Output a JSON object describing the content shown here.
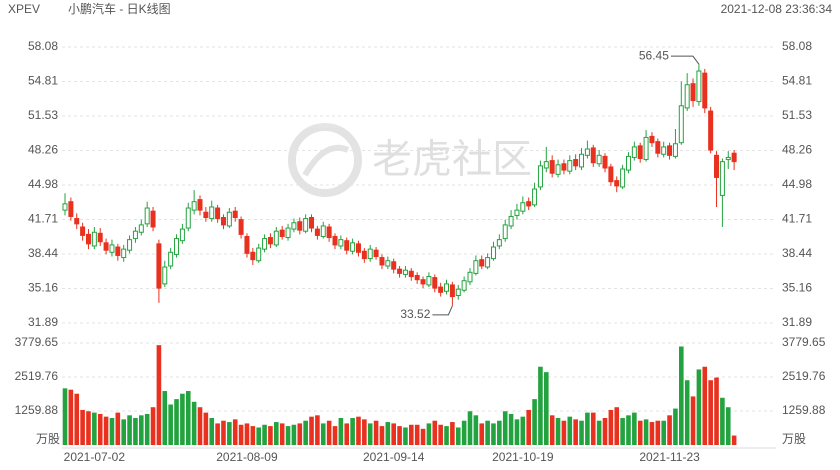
{
  "header": {
    "symbol": "XPEV",
    "name": "小鹏汽车 - 日K线图",
    "timestamp": "2021-12-08 23:36:34"
  },
  "watermark": "老虎社区",
  "chart_data": {
    "type": "candlestick",
    "up_color": "#23a33f",
    "down_color": "#e8311f",
    "categories": [
      null,
      null,
      null,
      null,
      null,
      "2021-07-02",
      null,
      null,
      null,
      null,
      null,
      null,
      null,
      null,
      null,
      null,
      null,
      null,
      null,
      null,
      null,
      null,
      null,
      null,
      null,
      null,
      null,
      null,
      null,
      null,
      null,
      "2021-08-09",
      null,
      null,
      null,
      null,
      null,
      null,
      null,
      null,
      null,
      null,
      null,
      null,
      null,
      null,
      null,
      null,
      null,
      null,
      null,
      null,
      null,
      null,
      null,
      null,
      "2021-09-14",
      null,
      null,
      null,
      null,
      null,
      null,
      null,
      null,
      null,
      null,
      null,
      null,
      null,
      null,
      null,
      null,
      null,
      null,
      null,
      null,
      null,
      "2021-10-19",
      null,
      null,
      null,
      null,
      null,
      null,
      null,
      null,
      null,
      null,
      null,
      null,
      null,
      null,
      null,
      null,
      null,
      null,
      null,
      null,
      null,
      null,
      null,
      null,
      "2021-11-23",
      null,
      null,
      null,
      null,
      null,
      null,
      null,
      null,
      null,
      null,
      null
    ],
    "open": [
      42.6,
      43.4,
      41.8,
      41.0,
      40.3,
      39.2,
      40.4,
      39.5,
      38.6,
      39.1,
      38.1,
      38.8,
      39.9,
      40.5,
      41.3,
      42.5,
      39.4,
      35.6,
      37.3,
      38.4,
      39.7,
      40.9,
      42.6,
      43.6,
      42.4,
      41.8,
      42.8,
      41.9,
      41.1,
      42.5,
      41.7,
      40.1,
      38.6,
      37.8,
      38.9,
      40.0,
      39.3,
      40.7,
      40.0,
      40.8,
      41.5,
      40.6,
      41.9,
      40.8,
      40.1,
      41.0,
      40.1,
      39.2,
      39.7,
      38.7,
      39.4,
      38.7,
      38.0,
      38.8,
      38.1,
      37.3,
      37.7,
      37.0,
      36.5,
      36.8,
      36.4,
      36.0,
      35.5,
      36.2,
      35.3,
      34.9,
      35.5,
      34.5,
      35.0,
      35.8,
      36.6,
      37.9,
      37.2,
      38.0,
      39.2,
      39.9,
      41.1,
      42.1,
      42.5,
      43.4,
      43.1,
      44.8,
      46.6,
      47.3,
      46.0,
      47.0,
      46.3,
      47.4,
      46.7,
      47.8,
      48.5,
      47.0,
      47.7,
      46.7,
      45.4,
      44.8,
      46.4,
      47.6,
      48.7,
      47.4,
      49.6,
      49.1,
      47.9,
      48.7,
      47.7,
      49.0,
      52.3,
      54.6,
      52.9,
      55.6,
      52.0,
      47.8,
      44.0,
      47.4,
      48.0
    ],
    "high": [
      44.2,
      43.8,
      42.3,
      41.4,
      40.8,
      41.0,
      40.9,
      39.9,
      39.8,
      39.4,
      39.3,
      40.2,
      41.0,
      41.7,
      43.4,
      42.9,
      39.8,
      37.8,
      39.0,
      40.3,
      41.3,
      43.3,
      44.5,
      44.0,
      42.9,
      43.5,
      43.1,
      42.2,
      42.8,
      42.9,
      42.0,
      40.4,
      39.0,
      39.4,
      40.3,
      40.4,
      41.0,
      41.1,
      41.3,
      41.8,
      41.9,
      42.2,
      42.2,
      41.1,
      41.5,
      41.3,
      40.4,
      40.2,
      40.0,
      39.9,
      39.7,
      39.0,
      39.3,
      39.1,
      38.4,
      38.2,
      38.0,
      37.3,
      37.3,
      37.1,
      36.7,
      36.3,
      36.7,
      36.5,
      35.7,
      36.0,
      35.8,
      35.5,
      36.3,
      37.1,
      38.3,
      38.3,
      38.5,
      39.6,
      40.3,
      41.7,
      42.6,
      43.2,
      43.9,
      43.8,
      45.2,
      47.3,
      48.6,
      47.8,
      47.4,
      47.4,
      47.8,
      47.9,
      48.5,
      49.2,
      48.8,
      48.3,
      48.0,
      47.0,
      45.8,
      46.9,
      48.1,
      49.1,
      49.0,
      50.2,
      50.0,
      49.4,
      49.1,
      49.0,
      50.3,
      54.8,
      55.6,
      55.1,
      56.45,
      56.0,
      52.4,
      48.2,
      47.5,
      48.2,
      48.3
    ],
    "low": [
      42.1,
      41.6,
      40.8,
      39.7,
      38.9,
      38.9,
      39.2,
      38.4,
      38.2,
      37.8,
      37.7,
      38.5,
      39.5,
      40.2,
      41.0,
      40.6,
      33.8,
      35.3,
      37.0,
      38.1,
      39.4,
      40.6,
      42.2,
      42.1,
      41.5,
      41.5,
      41.4,
      40.8,
      40.9,
      41.5,
      39.9,
      38.1,
      37.4,
      37.6,
      38.6,
      39.0,
      39.1,
      39.8,
      39.7,
      40.5,
      40.3,
      40.4,
      40.5,
      39.8,
      39.9,
      39.6,
      38.9,
      38.9,
      38.4,
      38.4,
      38.2,
      37.6,
      37.7,
      37.9,
      37.0,
      37.0,
      36.6,
      36.2,
      36.2,
      35.9,
      35.6,
      35.2,
      35.3,
      34.8,
      34.4,
      34.6,
      33.52,
      34.1,
      34.8,
      35.5,
      36.4,
      37.0,
      37.0,
      37.8,
      38.9,
      39.6,
      40.8,
      41.7,
      42.2,
      42.6,
      42.9,
      44.5,
      46.2,
      45.7,
      45.7,
      46.0,
      46.0,
      46.4,
      46.4,
      47.5,
      46.7,
      46.7,
      46.2,
      44.9,
      44.3,
      44.6,
      46.1,
      47.3,
      47.1,
      47.2,
      48.6,
      47.6,
      47.6,
      47.4,
      47.5,
      48.8,
      52.0,
      52.4,
      52.5,
      51.8,
      48.0,
      42.9,
      41.0,
      46.5,
      46.4
    ],
    "close": [
      43.2,
      42.0,
      41.3,
      40.2,
      39.4,
      40.5,
      39.6,
      38.8,
      39.3,
      38.3,
      38.9,
      39.8,
      40.6,
      41.2,
      42.8,
      41.0,
      35.2,
      37.2,
      38.6,
      39.9,
      40.8,
      42.8,
      43.4,
      42.6,
      41.9,
      42.9,
      41.8,
      41.2,
      42.4,
      41.9,
      40.3,
      38.5,
      37.9,
      39.0,
      39.9,
      39.4,
      40.6,
      40.1,
      40.9,
      41.4,
      40.7,
      41.8,
      40.9,
      40.2,
      41.1,
      40.0,
      39.3,
      39.8,
      38.8,
      39.5,
      38.6,
      38.0,
      38.9,
      38.2,
      37.4,
      37.8,
      37.0,
      36.6,
      36.9,
      36.3,
      36.0,
      35.6,
      36.3,
      35.2,
      34.8,
      35.6,
      34.4,
      35.1,
      35.9,
      36.7,
      37.8,
      37.3,
      38.1,
      39.1,
      39.8,
      41.2,
      42.0,
      42.6,
      43.3,
      43.0,
      44.6,
      46.8,
      47.2,
      46.1,
      46.9,
      46.4,
      47.3,
      46.8,
      47.9,
      48.4,
      47.1,
      47.8,
      46.6,
      45.3,
      44.9,
      46.5,
      47.7,
      48.6,
      47.5,
      49.5,
      49.0,
      48.0,
      48.6,
      47.8,
      48.9,
      52.5,
      54.5,
      53.0,
      55.8,
      52.3,
      48.3,
      45.7,
      47.2,
      47.6,
      47.2
    ],
    "volume": [
      2100,
      2050,
      1900,
      1300,
      1250,
      1200,
      1150,
      1050,
      1000,
      1200,
      950,
      1100,
      1000,
      1100,
      1150,
      1400,
      3700,
      2000,
      1500,
      1700,
      1900,
      2000,
      1600,
      1400,
      1200,
      1000,
      800,
      900,
      850,
      950,
      750,
      800,
      700,
      650,
      750,
      700,
      850,
      800,
      700,
      750,
      800,
      900,
      1050,
      1100,
      800,
      900,
      700,
      1000,
      800,
      1000,
      1050,
      950,
      800,
      900,
      700,
      850,
      800,
      700,
      650,
      750,
      750,
      600,
      800,
      900,
      750,
      700,
      850,
      650,
      900,
      1250,
      1100,
      800,
      900,
      800,
      900,
      1250,
      1150,
      950,
      1050,
      1300,
      1700,
      2900,
      2700,
      1100,
      1000,
      900,
      1050,
      950,
      900,
      1200,
      1200,
      900,
      1000,
      1300,
      1400,
      1000,
      1100,
      1200,
      900,
      950,
      850,
      900,
      900,
      1100,
      1350,
      3650,
      2400,
      1800,
      2800,
      2900,
      2400,
      2500,
      1750,
      1400,
      350
    ],
    "ylim": [
      31.89,
      58.08
    ],
    "yticks": [
      58.08,
      54.81,
      51.53,
      48.26,
      44.98,
      41.71,
      38.44,
      35.16,
      31.89
    ],
    "volume_lim": [
      0,
      3779.65
    ],
    "volume_ticks": [
      3779.65,
      2519.76,
      1259.88
    ],
    "volume_unit": "万股",
    "grid": true
  }
}
